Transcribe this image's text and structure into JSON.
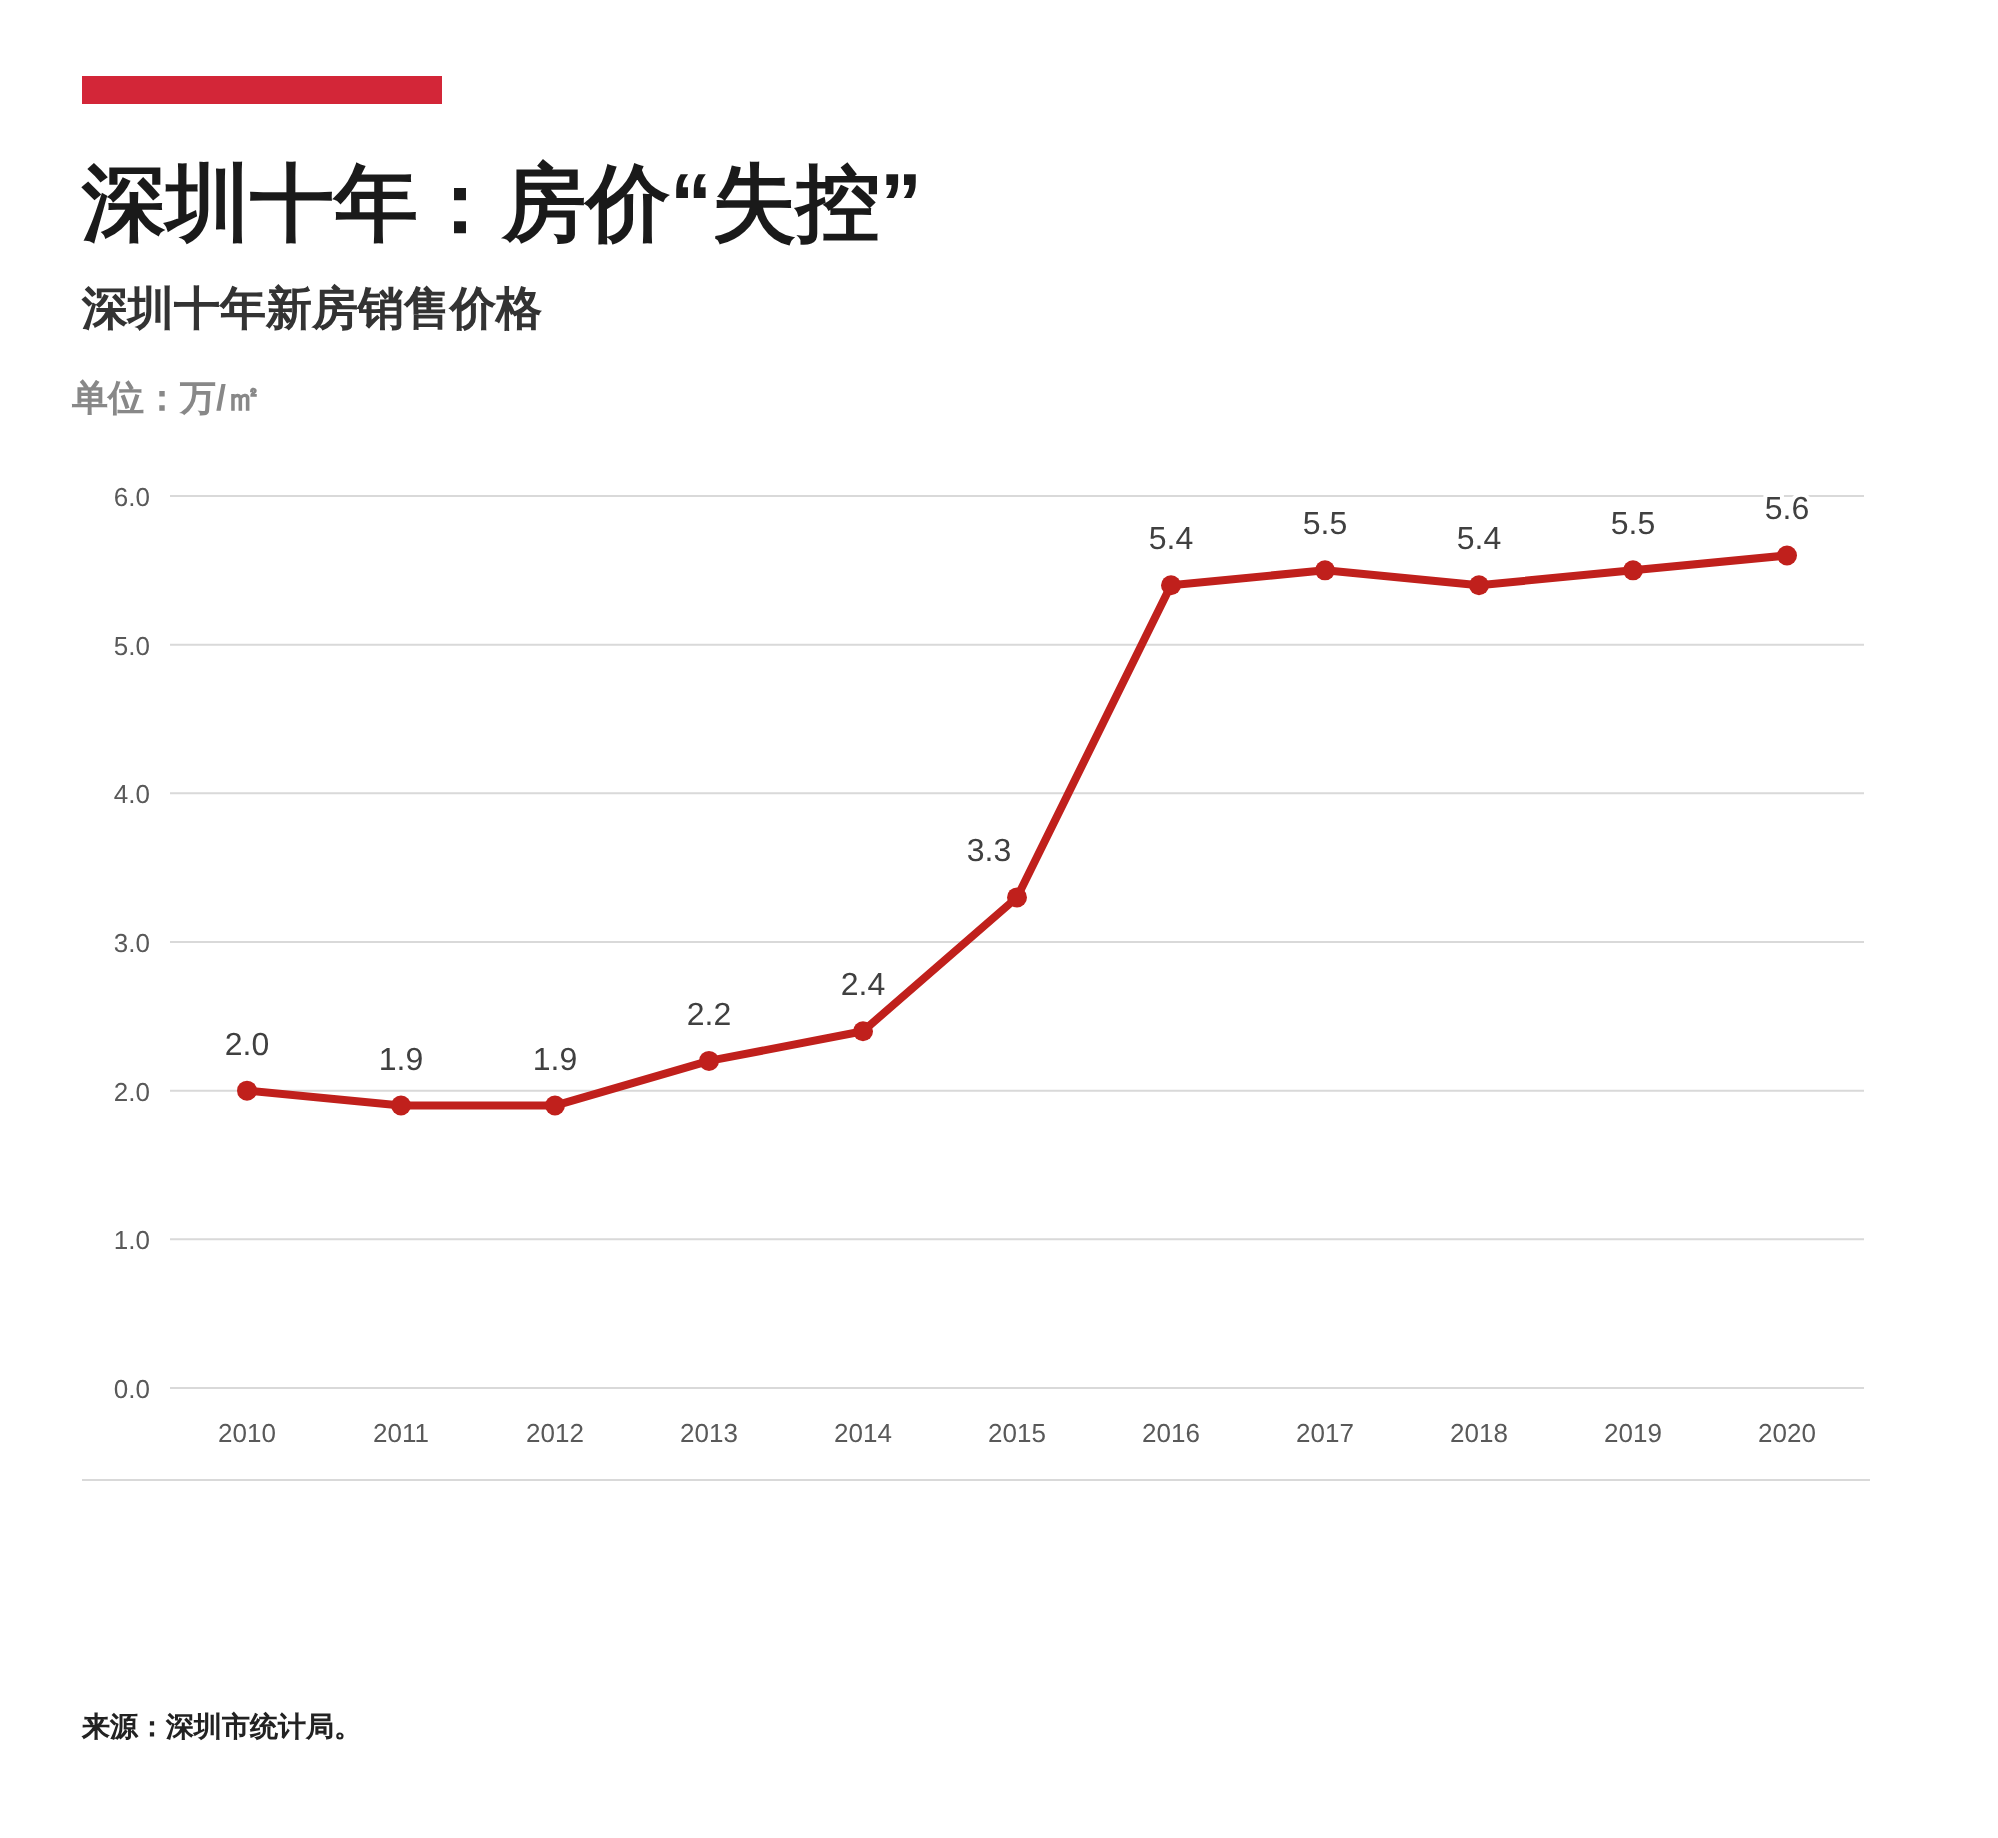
{
  "chart_data": {
    "type": "line",
    "title": "深圳十年：房价“失控”",
    "subtitle": "深圳十年新房销售价格",
    "ylabel": "单位：万/㎡",
    "annotations": [
      "来源：深圳市统计局。"
    ],
    "categories": [
      "2010",
      "2011",
      "2012",
      "2013",
      "2014",
      "2015",
      "2016",
      "2017",
      "2018",
      "2019",
      "2020"
    ],
    "series": [
      {
        "color": "#c0201c",
        "values": [
          2.0,
          1.9,
          1.9,
          2.2,
          2.4,
          3.3,
          5.4,
          5.5,
          5.4,
          5.5,
          5.6
        ],
        "value_labels": [
          "2.0",
          "1.9",
          "1.9",
          "2.2",
          "2.4",
          "3.3",
          "5.4",
          "5.5",
          "5.4",
          "5.5",
          "5.6"
        ]
      }
    ],
    "ylim": [
      0,
      6
    ],
    "yticks": [
      {
        "value": 0,
        "label": "0.0"
      },
      {
        "value": 1,
        "label": "1.0"
      },
      {
        "value": 2,
        "label": "2.0"
      },
      {
        "value": 3,
        "label": "3.0"
      },
      {
        "value": 4,
        "label": "4.0"
      },
      {
        "value": 5,
        "label": "5.0"
      },
      {
        "value": 6,
        "label": "6.0"
      }
    ],
    "grid": "y",
    "marker": "circle",
    "line_style": "solid"
  }
}
